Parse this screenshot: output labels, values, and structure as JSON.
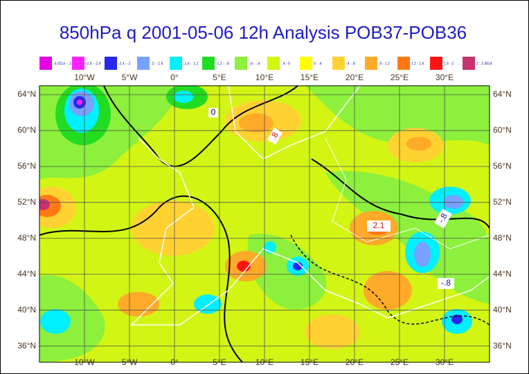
{
  "title": "850hPa q 2001-05-06 12h Analysis POB37-POB36",
  "legend": [
    {
      "label": "-3.0214 - -2.8",
      "color": "#e600e6"
    },
    {
      "label": "-2.8 - -2.4",
      "color": "#ff22ff"
    },
    {
      "label": "-2.4 - -2",
      "color": "#2828f0"
    },
    {
      "label": "-2 - -1.6",
      "color": "#78a0ff"
    },
    {
      "label": "-1.6 - -1.2",
      "color": "#00f0ff"
    },
    {
      "label": "-1.2 - -.8",
      "color": "#22dc22"
    },
    {
      "label": "-.8 - -.4",
      "color": "#8cf03c"
    },
    {
      "label": "-.4 - 0",
      "color": "#d2f514"
    },
    {
      "label": "0 - .4",
      "color": "#ffff00"
    },
    {
      "label": ".4 - .8",
      "color": "#ffd232"
    },
    {
      "label": ".8 - 1.2",
      "color": "#ffaa28"
    },
    {
      "label": "1.2 - 1.6",
      "color": "#ff7814"
    },
    {
      "label": "1.6 - 2",
      "color": "#ff1414"
    },
    {
      "label": "2 - 2.3814",
      "color": "#c8326e"
    }
  ],
  "map": {
    "xlim": [
      -15,
      35
    ],
    "ylim": [
      34.2,
      65
    ],
    "xticks": [
      {
        "value": -10,
        "label": "10°W"
      },
      {
        "value": -5,
        "label": "5°W"
      },
      {
        "value": 0,
        "label": "0°"
      },
      {
        "value": 5,
        "label": "5°E"
      },
      {
        "value": 10,
        "label": "10°E"
      },
      {
        "value": 15,
        "label": "15°E"
      },
      {
        "value": 20,
        "label": "20°E"
      },
      {
        "value": 25,
        "label": "25°E"
      },
      {
        "value": 30,
        "label": "30°E"
      }
    ],
    "yticks": [
      {
        "value": 64,
        "label": "64°N"
      },
      {
        "value": 60,
        "label": "60°N"
      },
      {
        "value": 56,
        "label": "56°N"
      },
      {
        "value": 52,
        "label": "52°N"
      },
      {
        "value": 48,
        "label": "48°N"
      },
      {
        "value": 44,
        "label": "44°N"
      },
      {
        "value": 40,
        "label": "40°N"
      },
      {
        "value": 36,
        "label": "36°N"
      }
    ]
  },
  "contour_labels": [
    "0",
    ".8",
    "2.1",
    "-.8",
    "-.8"
  ]
}
